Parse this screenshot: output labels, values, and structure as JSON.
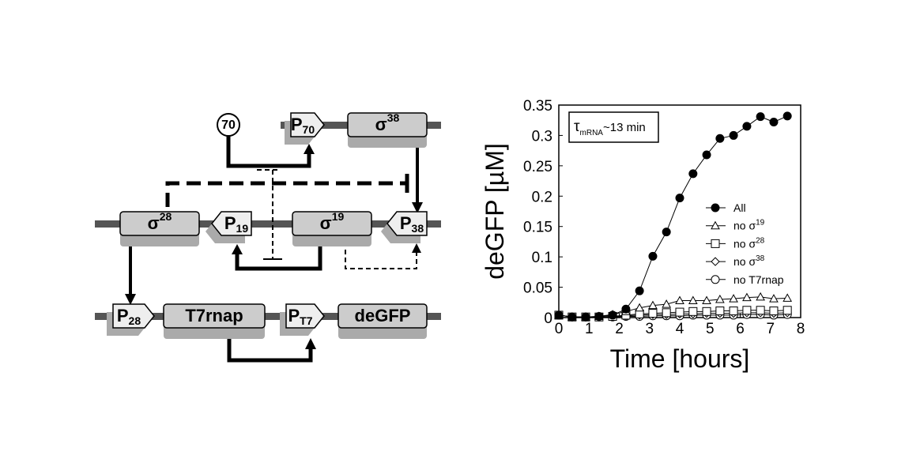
{
  "diagram": {
    "sigma70": "70",
    "genes": [
      {
        "text": "P",
        "sub": "70"
      },
      {
        "text": "σ",
        "sup": "38"
      },
      {
        "text": "σ",
        "sup": "28"
      },
      {
        "text": "P",
        "sub": "19"
      },
      {
        "text": "σ",
        "sup": "19"
      },
      {
        "text": "P",
        "sub": "38"
      },
      {
        "text": "P",
        "sub": "28"
      },
      {
        "text": "T7rnap"
      },
      {
        "text": "P",
        "sub": "T7"
      },
      {
        "text": "deGFP"
      }
    ]
  },
  "chart_data": {
    "type": "line",
    "xlabel": "Time [hours]",
    "ylabel": "deGFP [µM]",
    "annotation": {
      "symbol": "τ",
      "sub": "mRNA",
      "text": "~13 min"
    },
    "xlim": [
      0,
      8
    ],
    "ylim": [
      0,
      0.35
    ],
    "xticks": [
      0,
      1,
      2,
      3,
      4,
      5,
      6,
      7,
      8
    ],
    "yticks": [
      0,
      0.05,
      0.1,
      0.15,
      0.2,
      0.25,
      0.3,
      0.35
    ],
    "x": [
      0,
      0.44,
      0.89,
      1.33,
      1.78,
      2.22,
      2.67,
      3.11,
      3.56,
      4,
      4.44,
      4.89,
      5.33,
      5.78,
      6.22,
      6.67,
      7.11,
      7.56
    ],
    "series": [
      {
        "name": "All",
        "marker": "filled-circle",
        "color": "#000000",
        "values": [
          0.004,
          0.001,
          0.001,
          0.002,
          0.004,
          0.014,
          0.044,
          0.101,
          0.141,
          0.197,
          0.237,
          0.268,
          0.295,
          0.3,
          0.315,
          0.331,
          0.322,
          0.332
        ]
      },
      {
        "name": "no σ",
        "sup": "19",
        "marker": "triangle",
        "color": "#000000",
        "values": [
          0.004,
          0.001,
          0.001,
          0.002,
          0.005,
          0.01,
          0.016,
          0.02,
          0.022,
          0.028,
          0.028,
          0.028,
          0.03,
          0.031,
          0.033,
          0.034,
          0.031,
          0.032
        ]
      },
      {
        "name": "no σ",
        "sup": "28",
        "marker": "square",
        "color": "#000000",
        "values": [
          0.004,
          0.001,
          0.001,
          0.001,
          0.002,
          0.004,
          0.006,
          0.007,
          0.008,
          0.009,
          0.01,
          0.01,
          0.011,
          0.011,
          0.012,
          0.012,
          0.011,
          0.012
        ]
      },
      {
        "name": "no σ",
        "sup": "38",
        "marker": "diamond",
        "color": "#000000",
        "values": [
          0.004,
          0.001,
          0.001,
          0.001,
          0.002,
          0.003,
          0.004,
          0.005,
          0.005,
          0.006,
          0.006,
          0.007,
          0.007,
          0.007,
          0.008,
          0.008,
          0.007,
          0.008
        ]
      },
      {
        "name": "no T7rnap",
        "marker": "circle",
        "color": "#000000",
        "values": [
          0.004,
          0.001,
          0.001,
          0.001,
          0.001,
          0.002,
          0.002,
          0.003,
          0.003,
          0.003,
          0.004,
          0.004,
          0.004,
          0.004,
          0.005,
          0.005,
          0.004,
          0.005
        ]
      }
    ]
  }
}
